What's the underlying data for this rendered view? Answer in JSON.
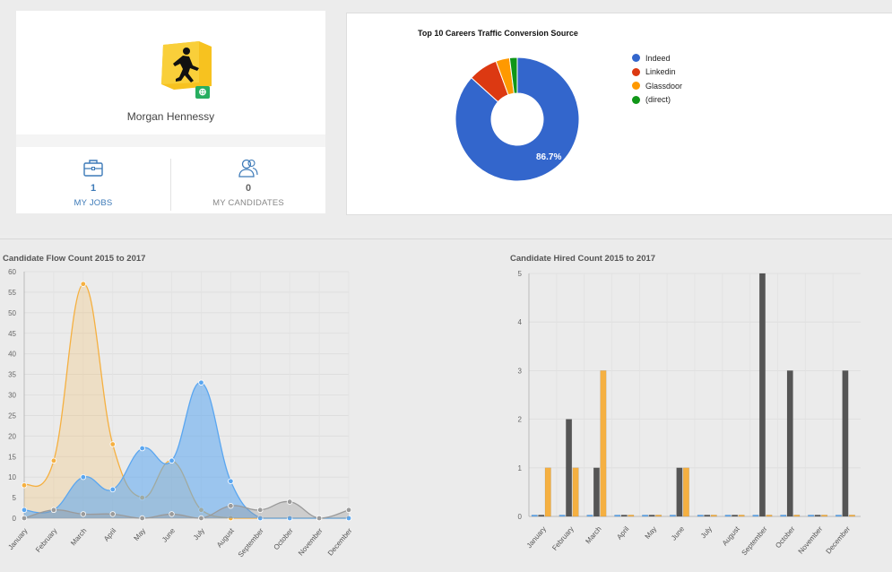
{
  "profile": {
    "name": "Morgan Hennessy",
    "badge_icon": "plus-circle-icon",
    "stats": [
      {
        "value": "1",
        "label": "MY JOBS",
        "icon": "briefcase-icon"
      },
      {
        "value": "0",
        "label": "MY CANDIDATES",
        "icon": "users-icon"
      }
    ]
  },
  "traffic": {
    "title": "Top 10 Careers Traffic Conversion Source",
    "main_label": "86.7%",
    "legend": [
      {
        "label": "Indeed",
        "color": "#3366cc"
      },
      {
        "label": "Linkedin",
        "color": "#dc3912"
      },
      {
        "label": "Glassdoor",
        "color": "#ff9900"
      },
      {
        "label": "(direct)",
        "color": "#109618"
      }
    ]
  },
  "flow_title": "Candidate Flow Count 2015 to 2017",
  "hired_title": "Candidate Hired Count 2015 to 2017",
  "chart_data": [
    {
      "type": "pie",
      "title": "Top 10 Careers Traffic Conversion Source",
      "categories": [
        "Indeed",
        "Linkedin",
        "Glassdoor",
        "(direct)"
      ],
      "values": [
        86.7,
        7.7,
        3.6,
        2.0
      ],
      "colors": [
        "#3366cc",
        "#dc3912",
        "#ff9900",
        "#109618"
      ],
      "legend": "right"
    },
    {
      "type": "area",
      "title": "Candidate Flow Count 2015 to 2017",
      "categories": [
        "January",
        "February",
        "March",
        "April",
        "May",
        "June",
        "July",
        "August",
        "September",
        "October",
        "November",
        "December"
      ],
      "ylim": [
        0,
        60
      ],
      "yticks": [
        0,
        5,
        10,
        15,
        20,
        25,
        30,
        35,
        40,
        45,
        50,
        55,
        60
      ],
      "grid": true,
      "series": [
        {
          "color": "#f5b041",
          "values": [
            8,
            14,
            57,
            18,
            5,
            14,
            2,
            0,
            0,
            0,
            0,
            0
          ]
        },
        {
          "color": "#5aa6f0",
          "values": [
            2,
            2,
            10,
            7,
            17,
            14,
            33,
            9,
            0,
            0,
            0,
            0
          ]
        },
        {
          "color": "#9a9a9a",
          "values": [
            0,
            2,
            1,
            1,
            0,
            1,
            0,
            3,
            2,
            4,
            0,
            2
          ]
        }
      ]
    },
    {
      "type": "bar",
      "title": "Candidate Hired Count 2015 to 2017",
      "categories": [
        "January",
        "February",
        "March",
        "April",
        "May",
        "June",
        "July",
        "August",
        "September",
        "October",
        "November",
        "December"
      ],
      "ylim": [
        0,
        5
      ],
      "yticks": [
        0,
        1,
        2,
        3,
        4,
        5
      ],
      "grid": true,
      "series": [
        {
          "color": "#5aa6f0",
          "values": [
            0,
            0,
            0,
            0,
            0,
            0,
            0,
            0,
            0,
            0,
            0,
            0
          ]
        },
        {
          "color": "#555555",
          "values": [
            0,
            2,
            1,
            0,
            0,
            1,
            0,
            0,
            5,
            3,
            0,
            3
          ]
        },
        {
          "color": "#f5b041",
          "values": [
            1,
            1,
            3,
            0,
            0,
            1,
            0,
            0,
            0,
            0,
            0,
            0
          ]
        }
      ]
    }
  ]
}
